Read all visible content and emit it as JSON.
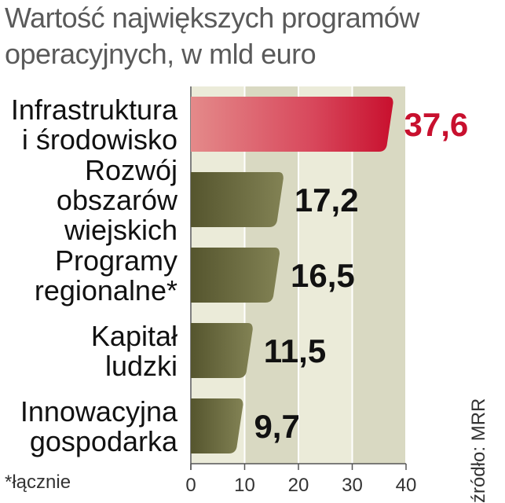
{
  "chart_data": {
    "type": "bar",
    "orientation": "horizontal",
    "title": "Wartość największych programów operacyjnych, w mld euro",
    "title_lines": [
      "Wartość największych programów",
      "operacyjnych, w mld euro"
    ],
    "categories": [
      [
        "Infrastruktura",
        "i środowisko"
      ],
      [
        "Rozwój",
        "obszarów",
        "wiejskich"
      ],
      [
        "Programy",
        "regionalne*"
      ],
      [
        "Kapitał",
        "ludzki"
      ],
      [
        "Innowacyjna",
        "gospodarka"
      ]
    ],
    "values": [
      37.6,
      17.2,
      16.5,
      11.5,
      9.7
    ],
    "value_labels": [
      "37,6",
      "17,2",
      "16,5",
      "11,5",
      "9,7"
    ],
    "xlim": [
      0,
      40
    ],
    "x_ticks": [
      "0",
      "10",
      "20",
      "30",
      "40"
    ],
    "grid": true,
    "colors": {
      "highlight": "#c8102e",
      "default_bar": "#6b6b3a",
      "panel": "#ebebd9",
      "panel_dark": "#d9d9c2"
    },
    "footnote": "*łącznie",
    "source": "źródło: MRR"
  }
}
